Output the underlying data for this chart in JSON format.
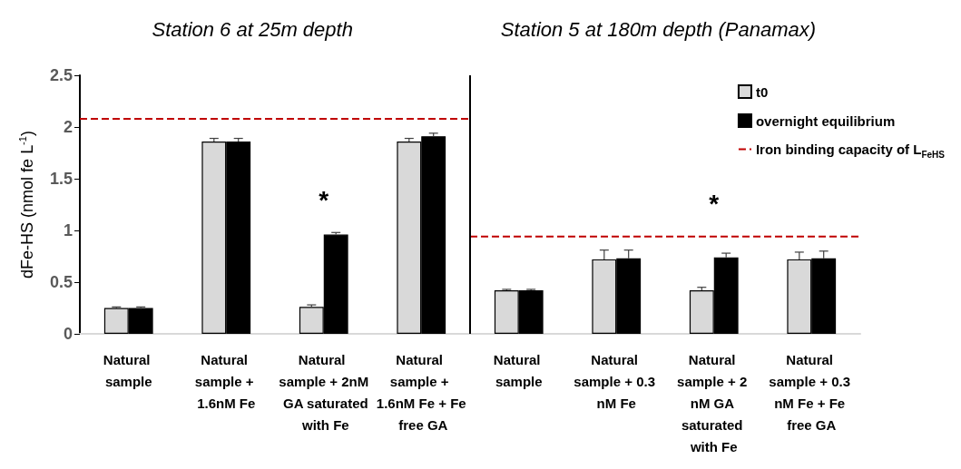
{
  "chart_data": {
    "type": "bar",
    "annotations": [
      "Station 6 at 25m depth",
      "Station 5 at 180m depth (Panamax)",
      "*",
      "*"
    ],
    "ylabel": "dFe-HS (nmol fe L$^{-1}$)",
    "categories": [
      "Natural sample",
      "Natural sample + 1.6nM Fe",
      "Natural sample + 2nM GA saturated with Fe",
      "Natural sample + 1.6nM Fe + Fe free GA",
      "Natural sample",
      "Natural sample + 0.3 nM Fe",
      "Natural sample + 2 nM GA saturated with Fe",
      "Natural sample + 0.3 nM Fe + Fe free GA"
    ],
    "series": [
      {
        "name": "t0",
        "color": "#d9d9d9",
        "values": [
          0.25,
          1.86,
          0.26,
          1.86,
          0.42,
          0.72,
          0.42,
          0.72
        ],
        "errors": [
          0.01,
          [
            1.86,
            1.89
          ],
          [
            0.26,
            0.28
          ],
          [
            1.86,
            1.89
          ],
          [
            0.42,
            0.43
          ],
          [
            0.72,
            0.81
          ],
          [
            0.42,
            0.45
          ],
          [
            0.72,
            0.79
          ]
        ]
      },
      {
        "name": "overnight equilibrium",
        "color": "#000000",
        "values": [
          0.25,
          1.86,
          0.96,
          1.91,
          0.42,
          0.73,
          0.74,
          0.73
        ],
        "errors": [
          0.01,
          [
            1.86,
            1.89
          ],
          [
            0.96,
            0.98
          ],
          [
            1.91,
            1.94
          ],
          [
            0.42,
            0.43
          ],
          [
            0.73,
            0.81
          ],
          [
            0.74,
            0.78
          ],
          [
            0.73,
            0.8
          ]
        ]
      }
    ],
    "ref_lines": [
      {
        "axis": "y",
        "value": 2.08,
        "label": "Iron binding capacity of L$_{FeHS}$",
        "color": "#c00000",
        "line_style": "dashed"
      },
      {
        "axis": "y",
        "value": 0.94,
        "color": "#c00000",
        "line_style": "dashed"
      }
    ],
    "ylim": [
      0,
      2.5
    ],
    "yticks": [
      0,
      0.5,
      1,
      1.5,
      2,
      2.5
    ],
    "grid": false,
    "legend": "top right"
  }
}
